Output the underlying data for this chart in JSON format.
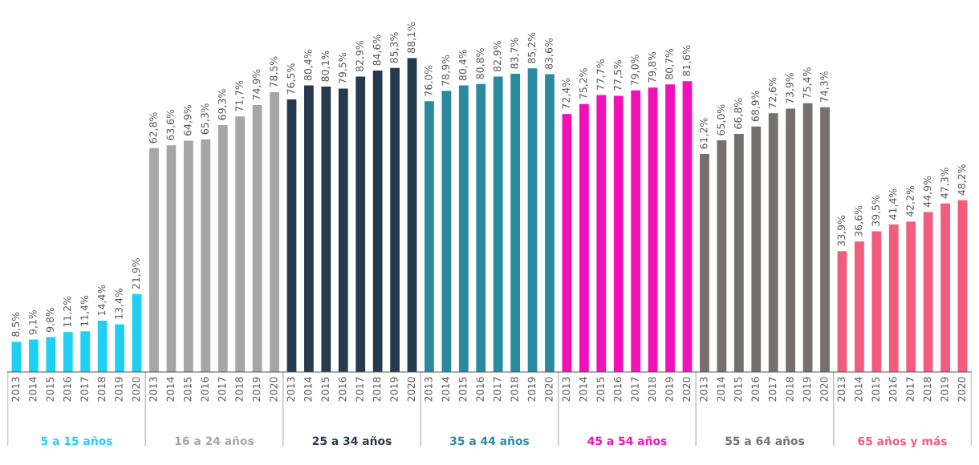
{
  "chart_data": {
    "type": "bar",
    "categories": [
      "2013",
      "2014",
      "2015",
      "2016",
      "2017",
      "2018",
      "2019",
      "2020",
      "2013",
      "2014",
      "2015",
      "2016",
      "2017",
      "2018",
      "2019",
      "2020",
      "2013",
      "2014",
      "2015",
      "2016",
      "2017",
      "2018",
      "2019",
      "2020",
      "2013",
      "2014",
      "2015",
      "2016",
      "2017",
      "2018",
      "2019",
      "2020",
      "2013",
      "2014",
      "2015",
      "2016",
      "2017",
      "2018",
      "2019",
      "2020",
      "2013",
      "2014",
      "2015",
      "2016",
      "2017",
      "2018",
      "2019",
      "2020",
      "2013",
      "2014",
      "2015",
      "2016",
      "2017",
      "2018",
      "2019",
      "2020"
    ],
    "series": [
      {
        "name": "5 a 15 años",
        "color": "#1fd0f5",
        "values": [
          8.5,
          9.1,
          9.8,
          11.2,
          11.4,
          14.4,
          13.4,
          21.9,
          null,
          null,
          null,
          null,
          null,
          null,
          null,
          null,
          null,
          null,
          null,
          null,
          null,
          null,
          null,
          null,
          null,
          null,
          null,
          null,
          null,
          null,
          null,
          null,
          null,
          null,
          null,
          null,
          null,
          null,
          null,
          null,
          null,
          null,
          null,
          null,
          null,
          null,
          null,
          null,
          null,
          null,
          null,
          null,
          null,
          null,
          null,
          null
        ],
        "value_labels": [
          "8,5%",
          "9,1%",
          "9,8%",
          "11,2%",
          "11,4%",
          "14,4%",
          "13,4%",
          "21,9%",
          null,
          null,
          null,
          null,
          null,
          null,
          null,
          null,
          null,
          null,
          null,
          null,
          null,
          null,
          null,
          null,
          null,
          null,
          null,
          null,
          null,
          null,
          null,
          null,
          null,
          null,
          null,
          null,
          null,
          null,
          null,
          null,
          null,
          null,
          null,
          null,
          null,
          null,
          null,
          null,
          null,
          null,
          null,
          null,
          null,
          null,
          null,
          null
        ]
      },
      {
        "name": "16 a 24 años",
        "color": "#a6a6a6",
        "values": [
          null,
          null,
          null,
          null,
          null,
          null,
          null,
          null,
          62.8,
          63.6,
          64.9,
          65.3,
          69.3,
          71.7,
          74.9,
          78.5,
          null,
          null,
          null,
          null,
          null,
          null,
          null,
          null,
          null,
          null,
          null,
          null,
          null,
          null,
          null,
          null,
          null,
          null,
          null,
          null,
          null,
          null,
          null,
          null,
          null,
          null,
          null,
          null,
          null,
          null,
          null,
          null,
          null,
          null,
          null,
          null,
          null,
          null,
          null,
          null
        ],
        "value_labels": [
          null,
          null,
          null,
          null,
          null,
          null,
          null,
          null,
          "62,8%",
          "63,6%",
          "64,9%",
          "65,3%",
          "69,3%",
          "71,7%",
          "74,9%",
          "78,5%",
          null,
          null,
          null,
          null,
          null,
          null,
          null,
          null,
          null,
          null,
          null,
          null,
          null,
          null,
          null,
          null,
          null,
          null,
          null,
          null,
          null,
          null,
          null,
          null,
          null,
          null,
          null,
          null,
          null,
          null,
          null,
          null,
          null,
          null,
          null,
          null,
          null,
          null,
          null,
          null
        ]
      },
      {
        "name": "25 a 34 años",
        "color": "#263a4f",
        "values": [
          null,
          null,
          null,
          null,
          null,
          null,
          null,
          null,
          null,
          null,
          null,
          null,
          null,
          null,
          null,
          null,
          76.5,
          80.4,
          80.1,
          79.5,
          82.9,
          84.6,
          85.3,
          88.1,
          null,
          null,
          null,
          null,
          null,
          null,
          null,
          null,
          null,
          null,
          null,
          null,
          null,
          null,
          null,
          null,
          null,
          null,
          null,
          null,
          null,
          null,
          null,
          null,
          null,
          null,
          null,
          null,
          null,
          null,
          null,
          null
        ],
        "value_labels": [
          null,
          null,
          null,
          null,
          null,
          null,
          null,
          null,
          null,
          null,
          null,
          null,
          null,
          null,
          null,
          null,
          "76,5%",
          "80,4%",
          "80,1%",
          "79,5%",
          "82,9%",
          "84,6%",
          "85,3%",
          "88,1%",
          null,
          null,
          null,
          null,
          null,
          null,
          null,
          null,
          null,
          null,
          null,
          null,
          null,
          null,
          null,
          null,
          null,
          null,
          null,
          null,
          null,
          null,
          null,
          null,
          null,
          null,
          null,
          null,
          null,
          null,
          null,
          null
        ]
      },
      {
        "name": "35 a 44 años",
        "color": "#2a8ba0",
        "values": [
          null,
          null,
          null,
          null,
          null,
          null,
          null,
          null,
          null,
          null,
          null,
          null,
          null,
          null,
          null,
          null,
          null,
          null,
          null,
          null,
          null,
          null,
          null,
          null,
          76.0,
          78.9,
          80.4,
          80.8,
          82.9,
          83.7,
          85.2,
          83.6,
          null,
          null,
          null,
          null,
          null,
          null,
          null,
          null,
          null,
          null,
          null,
          null,
          null,
          null,
          null,
          null,
          null,
          null,
          null,
          null,
          null,
          null,
          null,
          null
        ],
        "value_labels": [
          null,
          null,
          null,
          null,
          null,
          null,
          null,
          null,
          null,
          null,
          null,
          null,
          null,
          null,
          null,
          null,
          null,
          null,
          null,
          null,
          null,
          null,
          null,
          null,
          "76,0%",
          "78,9%",
          "80,4%",
          "80,8%",
          "82,9%",
          "83,7%",
          "85,2%",
          "83,6%",
          null,
          null,
          null,
          null,
          null,
          null,
          null,
          null,
          null,
          null,
          null,
          null,
          null,
          null,
          null,
          null,
          null,
          null,
          null,
          null,
          null,
          null,
          null,
          null
        ]
      },
      {
        "name": "45 a 54 años",
        "color": "#f011b8",
        "values": [
          null,
          null,
          null,
          null,
          null,
          null,
          null,
          null,
          null,
          null,
          null,
          null,
          null,
          null,
          null,
          null,
          null,
          null,
          null,
          null,
          null,
          null,
          null,
          null,
          null,
          null,
          null,
          null,
          null,
          null,
          null,
          null,
          72.4,
          75.2,
          77.7,
          77.5,
          79.0,
          79.8,
          80.7,
          81.6,
          null,
          null,
          null,
          null,
          null,
          null,
          null,
          null,
          null,
          null,
          null,
          null,
          null,
          null,
          null,
          null
        ],
        "value_labels": [
          null,
          null,
          null,
          null,
          null,
          null,
          null,
          null,
          null,
          null,
          null,
          null,
          null,
          null,
          null,
          null,
          null,
          null,
          null,
          null,
          null,
          null,
          null,
          null,
          null,
          null,
          null,
          null,
          null,
          null,
          null,
          null,
          "72,4%",
          "75,2%",
          "77,7%",
          "77,5%",
          "79,0%",
          "79,8%",
          "80,7%",
          "81,6%",
          null,
          null,
          null,
          null,
          null,
          null,
          null,
          null,
          null,
          null,
          null,
          null,
          null,
          null,
          null,
          null
        ]
      },
      {
        "name": "55 a 64 años",
        "color": "#757070",
        "values": [
          null,
          null,
          null,
          null,
          null,
          null,
          null,
          null,
          null,
          null,
          null,
          null,
          null,
          null,
          null,
          null,
          null,
          null,
          null,
          null,
          null,
          null,
          null,
          null,
          null,
          null,
          null,
          null,
          null,
          null,
          null,
          null,
          null,
          null,
          null,
          null,
          null,
          null,
          null,
          null,
          61.2,
          65.0,
          66.8,
          68.9,
          72.6,
          73.9,
          75.4,
          74.3,
          null,
          null,
          null,
          null,
          null,
          null,
          null,
          null
        ],
        "value_labels": [
          null,
          null,
          null,
          null,
          null,
          null,
          null,
          null,
          null,
          null,
          null,
          null,
          null,
          null,
          null,
          null,
          null,
          null,
          null,
          null,
          null,
          null,
          null,
          null,
          null,
          null,
          null,
          null,
          null,
          null,
          null,
          null,
          null,
          null,
          null,
          null,
          null,
          null,
          null,
          null,
          "61,2%",
          "65,0%",
          "66,8%",
          "68,9%",
          "72,6%",
          "73,9%",
          "75,4%",
          "74,3%",
          null,
          null,
          null,
          null,
          null,
          null,
          null,
          null
        ]
      },
      {
        "name": "65 años y más",
        "color": "#f25c7d",
        "values": [
          null,
          null,
          null,
          null,
          null,
          null,
          null,
          null,
          null,
          null,
          null,
          null,
          null,
          null,
          null,
          null,
          null,
          null,
          null,
          null,
          null,
          null,
          null,
          null,
          null,
          null,
          null,
          null,
          null,
          null,
          null,
          null,
          null,
          null,
          null,
          null,
          null,
          null,
          null,
          null,
          null,
          null,
          null,
          null,
          null,
          null,
          null,
          null,
          33.9,
          36.6,
          39.5,
          41.4,
          42.2,
          44.9,
          47.3,
          48.2
        ],
        "value_labels": [
          null,
          null,
          null,
          null,
          null,
          null,
          null,
          null,
          null,
          null,
          null,
          null,
          null,
          null,
          null,
          null,
          null,
          null,
          null,
          null,
          null,
          null,
          null,
          null,
          null,
          null,
          null,
          null,
          null,
          null,
          null,
          null,
          null,
          null,
          null,
          null,
          null,
          null,
          null,
          null,
          null,
          null,
          null,
          null,
          null,
          null,
          null,
          null,
          "33,9%",
          "36,6%",
          "39,5%",
          "41,4%",
          "42,2%",
          "44,9%",
          "47,3%",
          "48,2%"
        ]
      }
    ],
    "tick_labels": "x",
    "grid": false,
    "legend": false
  }
}
